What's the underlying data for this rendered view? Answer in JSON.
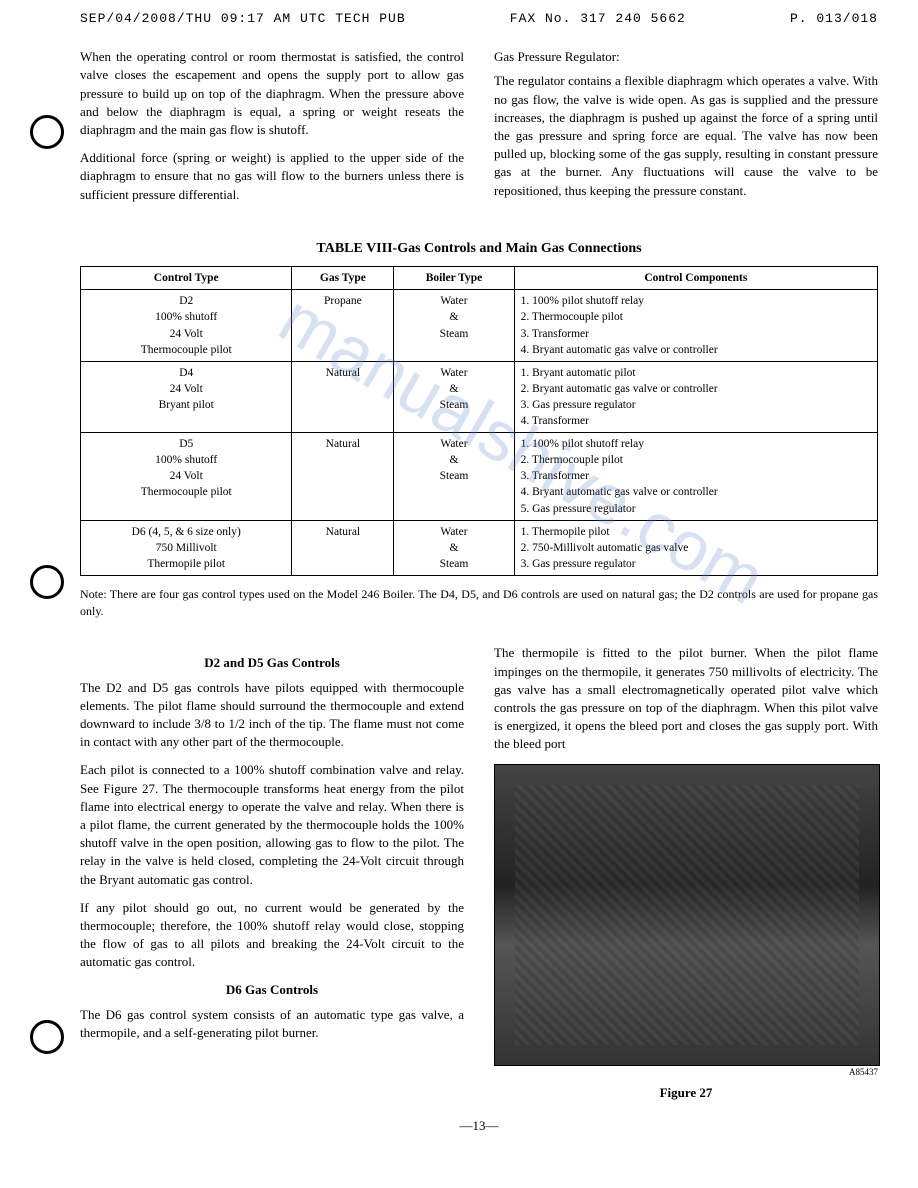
{
  "fax": {
    "left": "SEP/04/2008/THU 09:17 AM   UTC TECH PUB",
    "center": "FAX No. 317 240 5662",
    "right": "P. 013/018"
  },
  "top_left": {
    "p1": "When the operating control or room thermostat is satisfied, the control valve closes the escapement and opens the supply port to allow gas pressure to build up on top of the diaphragm. When the pressure above and below the diaphragm is equal, a spring or weight reseats the diaphragm and the main gas flow is shutoff.",
    "p2": "Additional force (spring or weight) is applied to the upper side of the diaphragm to ensure that no gas will flow to the burners unless there is sufficient pressure differential."
  },
  "top_right": {
    "title": "Gas Pressure Regulator:",
    "p1": "The regulator contains a flexible diaphragm which operates a valve. With no gas flow, the valve is wide open. As gas is supplied and the pressure increases, the diaphragm is pushed up against the force of a spring until the gas pressure and spring force are equal. The valve has now been pulled up, blocking some of the gas supply, resulting in constant pressure gas at the burner. Any fluctuations will cause the valve to be repositioned, thus keeping the pressure constant."
  },
  "table": {
    "title": "TABLE VIII-Gas Controls and Main Gas Connections",
    "headers": [
      "Control Type",
      "Gas Type",
      "Boiler Type",
      "Control Components"
    ],
    "rows": [
      {
        "control": "D2\n100% shutoff\n24 Volt\nThermocouple pilot",
        "gas": "Propane",
        "boiler": "Water\n&\nSteam",
        "components": "1. 100% pilot shutoff relay\n2. Thermocouple pilot\n3. Transformer\n4. Bryant automatic gas valve or controller"
      },
      {
        "control": "D4\n24 Volt\nBryant pilot",
        "gas": "Natural",
        "boiler": "Water\n&\nSteam",
        "components": "1. Bryant automatic pilot\n2. Bryant automatic gas valve or controller\n3. Gas pressure regulator\n4. Transformer"
      },
      {
        "control": "D5\n100% shutoff\n24 Volt\nThermocouple pilot",
        "gas": "Natural",
        "boiler": "Water\n&\nSteam",
        "components": "1. 100% pilot shutoff relay\n2. Thermocouple pilot\n3. Transformer\n4. Bryant automatic gas valve or controller\n5. Gas pressure regulator"
      },
      {
        "control": "D6 (4, 5, & 6 size only)\n750 Millivolt\nThermopile pilot",
        "gas": "Natural",
        "boiler": "Water\n&\nSteam",
        "components": "1. Thermopile pilot\n2. 750-Millivolt automatic gas valve\n3. Gas pressure regulator"
      }
    ],
    "note": "Note: There are four gas control types used on the Model 246 Boiler. The D4, D5, and D6 controls are used on natural gas; the D2 controls are used for propane gas only."
  },
  "d2d5": {
    "head": "D2 and D5 Gas Controls",
    "p1": "The D2 and D5 gas controls have pilots equipped with thermocouple elements. The pilot flame should surround the thermocouple and extend downward to include 3/8 to 1/2 inch of the tip. The flame must not come in contact with any other part of the thermocouple.",
    "p2": "Each pilot is connected to a 100% shutoff combination valve and relay. See Figure 27. The thermocouple transforms heat energy from the pilot flame into electrical energy to operate the valve and relay. When there is a pilot flame, the current generated by the thermocouple holds the 100% shutoff valve in the open position, allowing gas to flow to the pilot. The relay in the valve is held closed, completing the 24-Volt circuit through the Bryant automatic gas control.",
    "p3": "If any pilot should go out, no current would be generated by the thermocouple; therefore, the 100% shutoff relay would close, stopping the flow of gas to all pilots and breaking the 24-Volt circuit to the automatic gas control."
  },
  "d6": {
    "head": "D6 Gas Controls",
    "p1": "The D6 gas control system consists of an automatic type gas valve, a thermopile, and a self-generating pilot burner."
  },
  "right_body": {
    "p1": "The thermopile is fitted to the pilot burner. When the pilot flame impinges on the thermopile, it generates 750 millivolts of electricity. The gas valve has a small electromagnetically operated pilot valve which controls the gas pressure on top of the diaphragm. When this pilot valve is energized, it opens the bleed port and closes the gas supply port. With the bleed port"
  },
  "figure": {
    "caption": "Figure 27",
    "id": "A85437"
  },
  "page_number": "—13—",
  "watermark": "manualshive.com"
}
